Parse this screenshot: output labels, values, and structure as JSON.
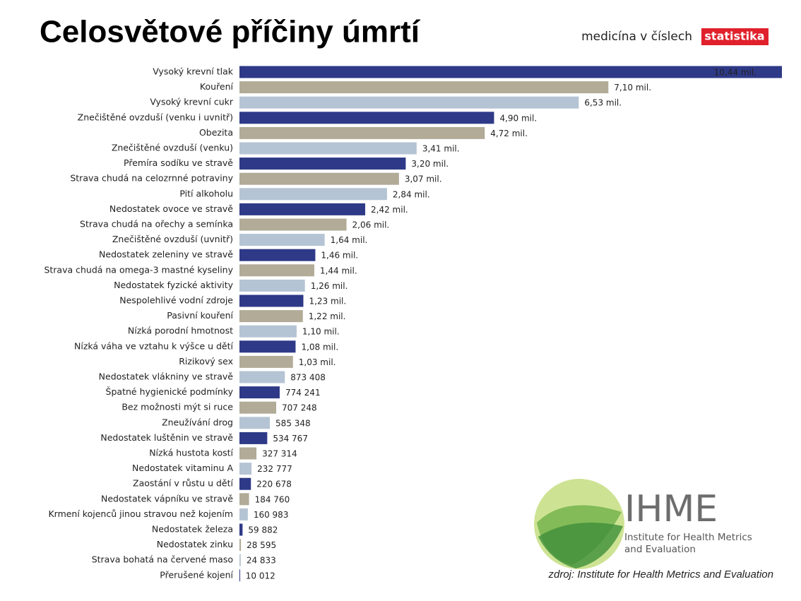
{
  "chart_data": {
    "type": "hbar",
    "title": "Celosvětové příčiny úmrtí",
    "colors": [
      "#2e3a87",
      "#b1ab97",
      "#b5c4d4"
    ],
    "value_label_inside_color": "#ffffff",
    "categories": [
      "Vysoký krevní tlak",
      "Kouření",
      "Vysoký krevní cukr",
      "Znečištěné ovzduší (venku i uvnitř)",
      "Obezita",
      "Znečištěné ovzduší (venku)",
      "Přemíra sodíku ve stravě",
      "Strava chudá na celozrnné potraviny",
      "Pití alkoholu",
      "Nedostatek ovoce ve stravě",
      "Strava chudá na ořechy a semínka",
      "Znečištěné ovzduší (uvnitř)",
      "Nedostatek zeleniny ve stravě",
      "Strava chudá na omega-3 mastné kyseliny",
      "Nedostatek fyzické aktivity",
      "Nespolehlivé vodní zdroje",
      "Pasivní kouření",
      "Nízká porodní hmotnost",
      "Nízká váha ve vztahu k výšce u dětí",
      "Rizikový sex",
      "Nedostatek vlákniny ve stravě",
      "Špatné hygienické podmínky",
      "Bez možnosti mýt si ruce",
      "Zneužívání drog",
      "Nedostatek luštěnin ve stravě",
      "Nízká hustota kostí",
      "Nedostatek vitaminu A",
      "Zaostání v růstu u dětí",
      "Nedostatek vápníku ve stravě",
      "Krmení kojenců jinou stravou než kojením",
      "Nedostatek železa",
      "Nedostatek zinku",
      "Strava bohatá na červené maso",
      "Přerušené kojení"
    ],
    "values": [
      10440000,
      7100000,
      6530000,
      4900000,
      4720000,
      3410000,
      3200000,
      3070000,
      2840000,
      2420000,
      2060000,
      1640000,
      1460000,
      1440000,
      1260000,
      1230000,
      1220000,
      1100000,
      1080000,
      1030000,
      873408,
      774241,
      707248,
      585348,
      534767,
      327314,
      232777,
      220678,
      184760,
      160983,
      59882,
      28595,
      24833,
      10012
    ],
    "value_labels": [
      "10,44 mil.",
      "7,10 mil.",
      "6,53 mil.",
      "4,90 mil.",
      "4,72 mil.",
      "3,41 mil.",
      "3,20 mil.",
      "3,07 mil.",
      "2,84 mil.",
      "2,42 mil.",
      "2,06 mil.",
      "1,64 mil.",
      "1,46 mil.",
      "1,44 mil.",
      "1,26 mil.",
      "1,23 mil.",
      "1,22 mil.",
      "1,10 mil.",
      "1,08 mil.",
      "1,03 mil.",
      "873 408",
      "774 241",
      "707 248",
      "585 348",
      "534 767",
      "327 314",
      "232 777",
      "220 678",
      "184 760",
      "160 983",
      "59 882",
      "28 595",
      "24 833",
      "10 012"
    ]
  },
  "header": {
    "brand": "medicína v číslech",
    "badge": "statistika"
  },
  "logo": {
    "name": "IHME",
    "line1": "Institute for Health Metrics",
    "line2": "and Evaluation"
  },
  "source": "zdroj: Institute for Health Metrics and Evaluation"
}
